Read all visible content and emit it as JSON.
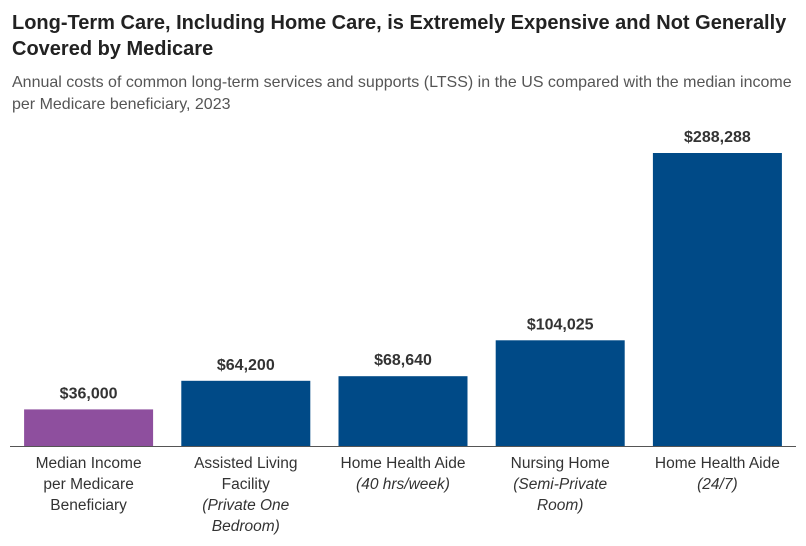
{
  "chart_data": {
    "type": "bar",
    "title": "Long-Term Care, Including Home Care, is Extremely Expensive and Not Generally Covered by Medicare",
    "subtitle": "Annual costs of common long-term services and supports (LTSS) in the US compared with the median income per Medicare beneficiary, 2023",
    "categories": [
      {
        "lines": [
          "Median Income",
          "per Medicare",
          "Beneficiary"
        ],
        "italic_lines": []
      },
      {
        "lines": [
          "Assisted Living",
          "Facility"
        ],
        "italic_lines": [
          "(Private One",
          "Bedroom)"
        ]
      },
      {
        "lines": [
          "Home Health Aide"
        ],
        "italic_lines": [
          "(40 hrs/week)"
        ]
      },
      {
        "lines": [
          "Nursing Home"
        ],
        "italic_lines": [
          "(Semi-Private",
          "Room)"
        ]
      },
      {
        "lines": [
          "Home Health Aide"
        ],
        "italic_lines": [
          "(24/7)"
        ]
      }
    ],
    "values": [
      36000,
      64200,
      68640,
      104025,
      288288
    ],
    "value_labels": [
      "$36,000",
      "$64,200",
      "$68,640",
      "$104,025",
      "$288,288"
    ],
    "bar_colors": [
      "#8E4F9E",
      "#004A87",
      "#004A87",
      "#004A87",
      "#004A87"
    ],
    "ylim": [
      0,
      288288
    ],
    "xlabel": "",
    "ylabel": ""
  }
}
